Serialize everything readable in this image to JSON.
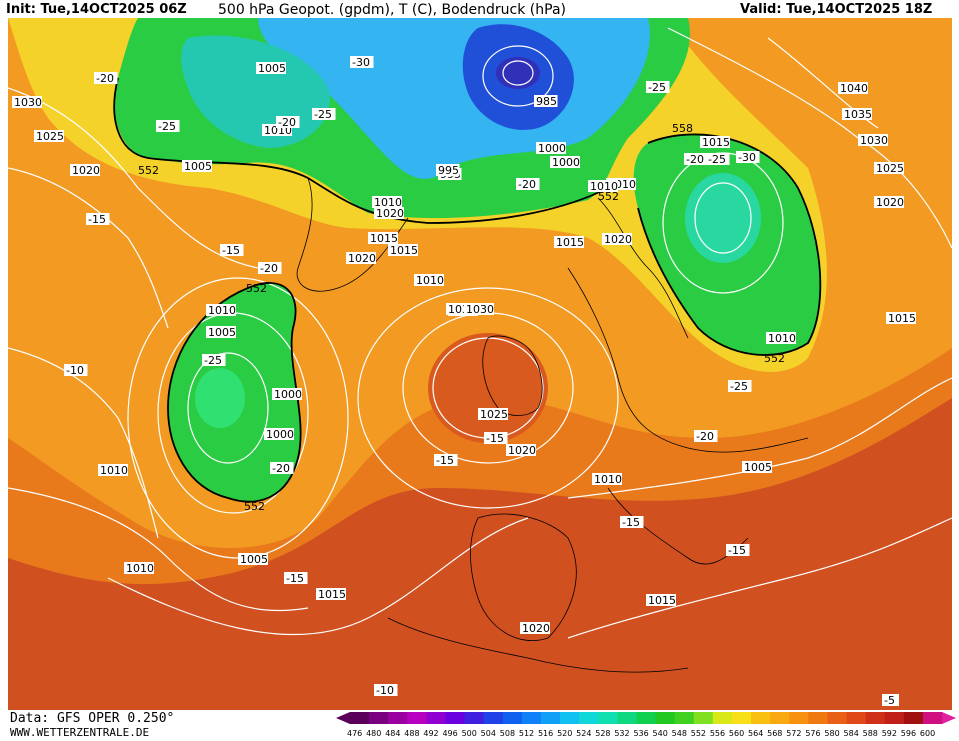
{
  "header": {
    "init": "Init: Tue,14OCT2025 06Z",
    "title": "500 hPa Geopot. (gpdm), T (C), Bodendruck (hPa)",
    "valid": "Valid: Tue,14OCT2025 18Z"
  },
  "footer": {
    "source": "Data: GFS OPER 0.250°",
    "site": "WWW.WETTERZENTRALE.DE"
  },
  "colors": {
    "ocean_red": "#cc4a1e",
    "orange": "#ee8a1c",
    "light_orange": "#f4a526",
    "yellow": "#f6dc30",
    "green": "#20cc40",
    "light_green": "#30e060",
    "teal": "#20c8a0",
    "cyan": "#30b0f0",
    "blue": "#2050e0",
    "dark_blue": "#3030c0"
  },
  "map_labels": {
    "pressure": [
      "1030",
      "1025",
      "1020",
      "1005",
      "1010",
      "985",
      "1000",
      "995",
      "1015",
      "1040",
      "1035",
      "1030",
      "1025",
      "1020",
      "1015",
      "1010",
      "1030",
      "1025",
      "1020",
      "1010",
      "1005",
      "1000",
      "1010",
      "1005",
      "1010",
      "1015",
      "1020",
      "1015",
      "1020",
      "1010",
      "1015",
      "1020",
      "1010",
      "1030",
      "1010",
      "1005",
      "1000",
      "995",
      "1010",
      "1020",
      "1015",
      "1030",
      "1015",
      "1005",
      "1000",
      "1010"
    ],
    "temperature": [
      "-20",
      "-25",
      "-20",
      "-25",
      "-30",
      "-25",
      "-20",
      "-25",
      "-30",
      "-15",
      "-15",
      "-20",
      "-25",
      "-10",
      "-20",
      "-15",
      "-15",
      "-15",
      "-15",
      "-25",
      "-20",
      "-15",
      "-10",
      "-5",
      "-20"
    ],
    "geopotential": [
      "552",
      "552",
      "552",
      "552",
      "552",
      "558"
    ]
  },
  "scale": {
    "values": [
      "476",
      "480",
      "484",
      "488",
      "492",
      "496",
      "500",
      "504",
      "508",
      "512",
      "516",
      "520",
      "524",
      "528",
      "532",
      "536",
      "540",
      "548",
      "552",
      "556",
      "560",
      "564",
      "568",
      "572",
      "576",
      "580",
      "584",
      "588",
      "592",
      "596",
      "600"
    ],
    "colors": [
      "#5a005a",
      "#7a0080",
      "#9a00a0",
      "#b800c0",
      "#9000d0",
      "#6a00e0",
      "#4020e0",
      "#2040e8",
      "#1060f0",
      "#1080f8",
      "#10a0f8",
      "#10c0f0",
      "#10d8d8",
      "#10e0b0",
      "#10d880",
      "#10d050",
      "#20c820",
      "#40d020",
      "#80e020",
      "#d8e818",
      "#f8e018",
      "#f8c010",
      "#f8a810",
      "#f89010",
      "#f07810",
      "#e86018",
      "#e04818",
      "#d03018",
      "#c02018",
      "#a01010",
      "#d01080"
    ]
  }
}
